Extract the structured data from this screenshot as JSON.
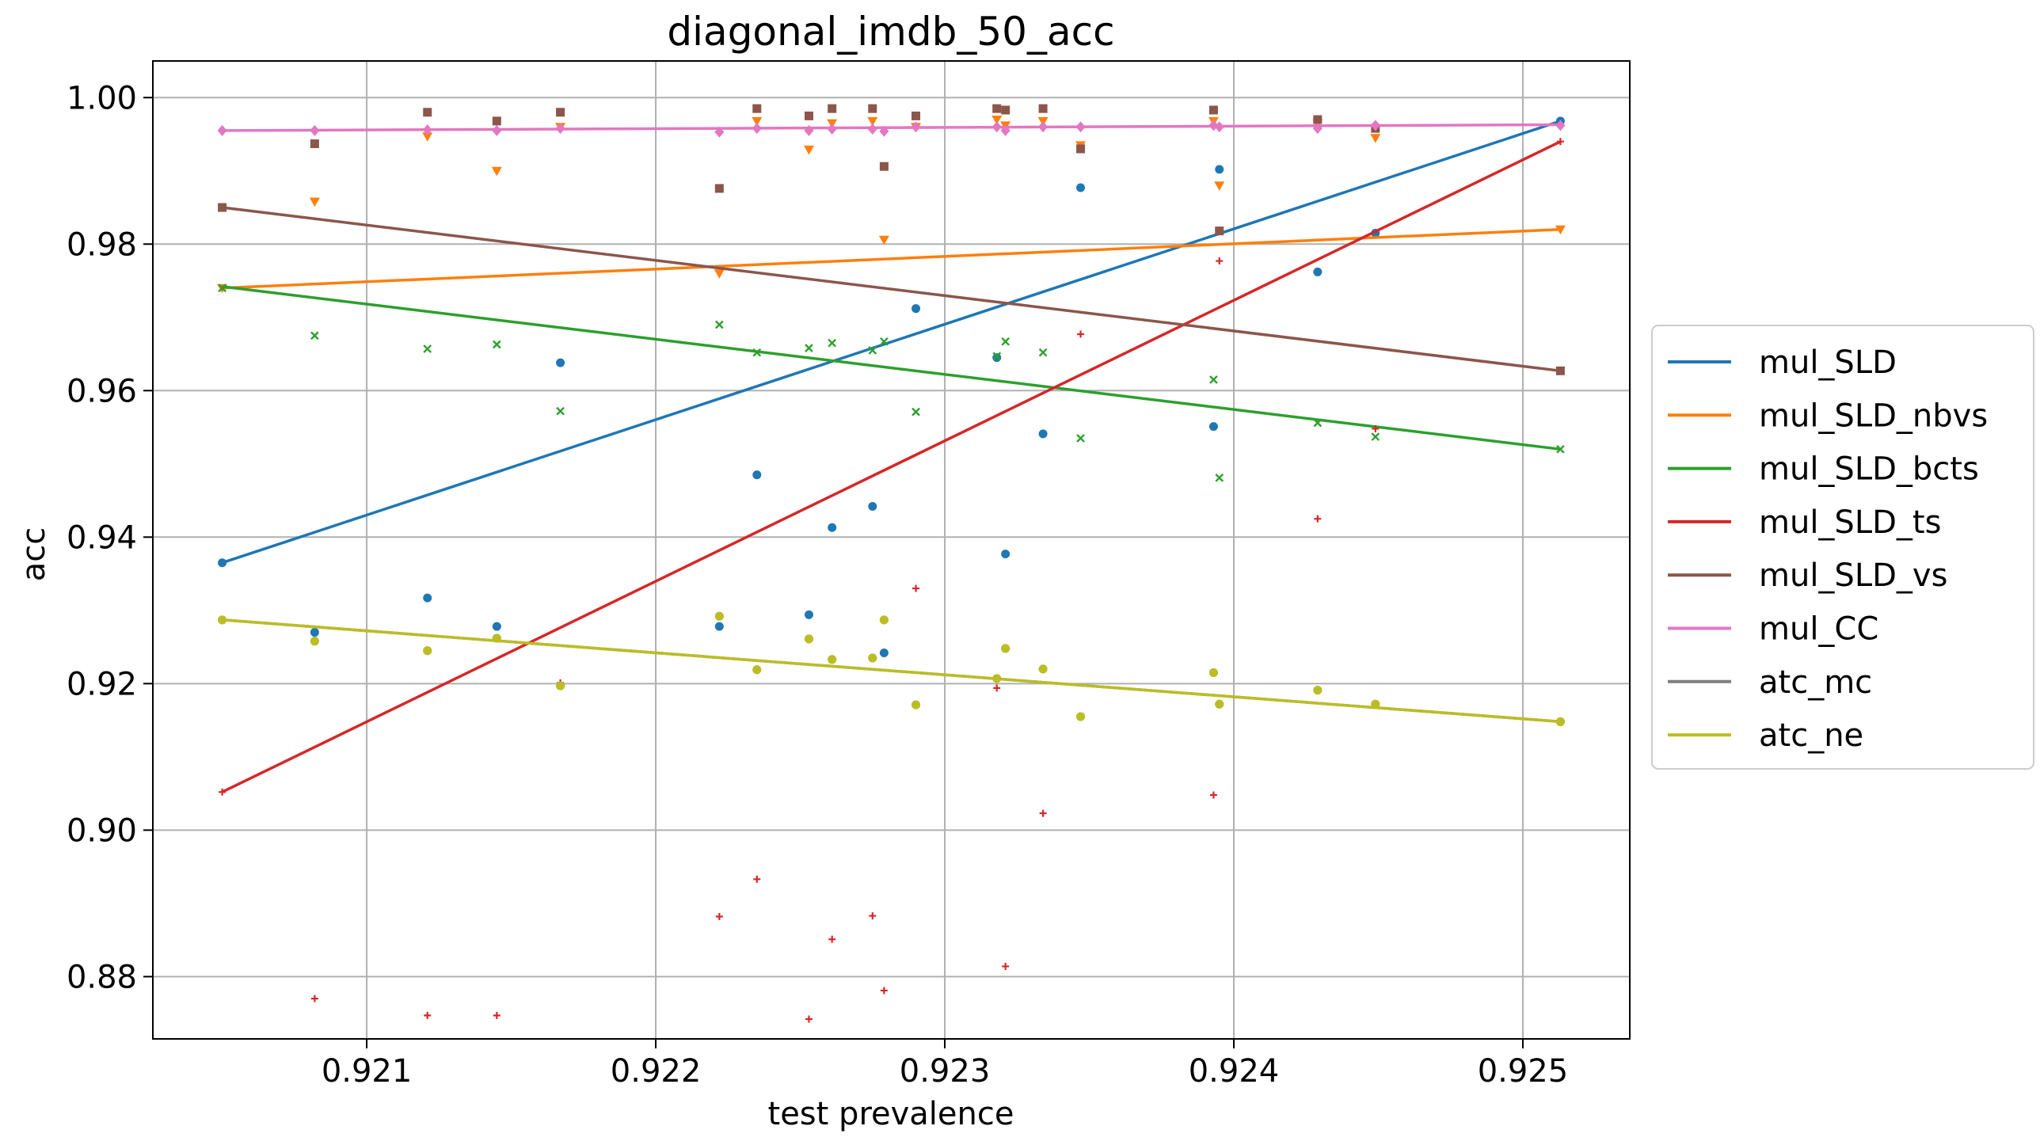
{
  "chart_data": {
    "type": "scatter",
    "title": "diagonal_imdb_50_acc",
    "xlabel": "test prevalence",
    "ylabel": "acc",
    "xlim": [
      0.92026,
      0.92537
    ],
    "ylim": [
      0.8715,
      1.005
    ],
    "grid": true,
    "legend_position": "outside-right",
    "xticks": [
      0.921,
      0.922,
      0.923,
      0.924,
      0.925
    ],
    "xtick_labels": [
      "0.921",
      "0.922",
      "0.923",
      "0.924",
      "0.925"
    ],
    "yticks": [
      0.88,
      0.9,
      0.92,
      0.94,
      0.96,
      0.98,
      1.0
    ],
    "ytick_labels": [
      "0.88",
      "0.90",
      "0.92",
      "0.94",
      "0.96",
      "0.98",
      "1.00"
    ],
    "series": [
      {
        "name": "mul_SLD",
        "color": "#1f77b4",
        "marker": "circle",
        "points": [
          [
            0.9205,
            0.9365
          ],
          [
            0.92082,
            0.927
          ],
          [
            0.92121,
            0.9317
          ],
          [
            0.92145,
            0.9278
          ],
          [
            0.92167,
            0.9638
          ],
          [
            0.92222,
            0.9278
          ],
          [
            0.92235,
            0.9485
          ],
          [
            0.92253,
            0.9294
          ],
          [
            0.92261,
            0.9413
          ],
          [
            0.92275,
            0.9442
          ],
          [
            0.92279,
            0.9242
          ],
          [
            0.9229,
            0.9712
          ],
          [
            0.92318,
            0.9645
          ],
          [
            0.92321,
            0.9377
          ],
          [
            0.92334,
            0.9541
          ],
          [
            0.92347,
            0.9877
          ],
          [
            0.92393,
            0.9551
          ],
          [
            0.92395,
            0.9902
          ],
          [
            0.92429,
            0.9762
          ],
          [
            0.92449,
            0.9815
          ],
          [
            0.92513,
            0.9968
          ]
        ],
        "trend": [
          [
            0.9205,
            0.9365
          ],
          [
            0.92513,
            0.9968
          ]
        ]
      },
      {
        "name": "mul_SLD_nbvs",
        "color": "#ff7f0e",
        "marker": "triangle-down",
        "points": [
          [
            0.9205,
            0.974
          ],
          [
            0.92082,
            0.9858
          ],
          [
            0.92121,
            0.9947
          ],
          [
            0.92145,
            0.99
          ],
          [
            0.92167,
            0.996
          ],
          [
            0.92222,
            0.976
          ],
          [
            0.92235,
            0.9968
          ],
          [
            0.92253,
            0.9929
          ],
          [
            0.92261,
            0.9965
          ],
          [
            0.92275,
            0.9968
          ],
          [
            0.92279,
            0.9806
          ],
          [
            0.9229,
            0.996
          ],
          [
            0.92318,
            0.997
          ],
          [
            0.92321,
            0.9962
          ],
          [
            0.92334,
            0.9968
          ],
          [
            0.92347,
            0.9935
          ],
          [
            0.92393,
            0.9968
          ],
          [
            0.92395,
            0.988
          ],
          [
            0.92429,
            0.9965
          ],
          [
            0.92449,
            0.9945
          ],
          [
            0.92513,
            0.982
          ]
        ],
        "trend": [
          [
            0.9205,
            0.974
          ],
          [
            0.92513,
            0.982
          ]
        ]
      },
      {
        "name": "mul_SLD_bcts",
        "color": "#2ca02c",
        "marker": "x",
        "points": [
          [
            0.9205,
            0.974
          ],
          [
            0.92082,
            0.9675
          ],
          [
            0.92121,
            0.9657
          ],
          [
            0.92145,
            0.9663
          ],
          [
            0.92167,
            0.9572
          ],
          [
            0.92222,
            0.969
          ],
          [
            0.92235,
            0.9652
          ],
          [
            0.92253,
            0.9658
          ],
          [
            0.92261,
            0.9665
          ],
          [
            0.92275,
            0.9655
          ],
          [
            0.92279,
            0.9667
          ],
          [
            0.9229,
            0.9571
          ],
          [
            0.92318,
            0.9647
          ],
          [
            0.92321,
            0.9667
          ],
          [
            0.92334,
            0.9652
          ],
          [
            0.92347,
            0.9535
          ],
          [
            0.92393,
            0.9615
          ],
          [
            0.92395,
            0.9481
          ],
          [
            0.92429,
            0.9556
          ],
          [
            0.92449,
            0.9537
          ],
          [
            0.92513,
            0.952
          ]
        ],
        "trend": [
          [
            0.9205,
            0.9742
          ],
          [
            0.92513,
            0.952
          ]
        ]
      },
      {
        "name": "mul_SLD_ts",
        "color": "#d62728",
        "marker": "plus",
        "points": [
          [
            0.9205,
            0.9052
          ],
          [
            0.92082,
            0.877
          ],
          [
            0.92121,
            0.8747
          ],
          [
            0.92145,
            0.8747
          ],
          [
            0.92167,
            0.9201
          ],
          [
            0.92222,
            0.8882
          ],
          [
            0.92235,
            0.8933
          ],
          [
            0.92253,
            0.8742
          ],
          [
            0.92261,
            0.8851
          ],
          [
            0.92275,
            0.8883
          ],
          [
            0.92279,
            0.8781
          ],
          [
            0.9229,
            0.933
          ],
          [
            0.92318,
            0.9194
          ],
          [
            0.92321,
            0.8814
          ],
          [
            0.92334,
            0.9023
          ],
          [
            0.92347,
            0.9677
          ],
          [
            0.92393,
            0.9048
          ],
          [
            0.92395,
            0.9777
          ],
          [
            0.92429,
            0.9425
          ],
          [
            0.92449,
            0.9548
          ],
          [
            0.92513,
            0.994
          ]
        ],
        "trend": [
          [
            0.9205,
            0.9052
          ],
          [
            0.92513,
            0.994
          ]
        ]
      },
      {
        "name": "mul_SLD_vs",
        "color": "#8c564b",
        "marker": "square",
        "points": [
          [
            0.9205,
            0.985
          ],
          [
            0.92082,
            0.9937
          ],
          [
            0.92121,
            0.998
          ],
          [
            0.92145,
            0.9968
          ],
          [
            0.92167,
            0.998
          ],
          [
            0.92222,
            0.9876
          ],
          [
            0.92235,
            0.9985
          ],
          [
            0.92253,
            0.9975
          ],
          [
            0.92261,
            0.9985
          ],
          [
            0.92275,
            0.9985
          ],
          [
            0.92279,
            0.9906
          ],
          [
            0.9229,
            0.9975
          ],
          [
            0.92318,
            0.9985
          ],
          [
            0.92321,
            0.9983
          ],
          [
            0.92334,
            0.9985
          ],
          [
            0.92347,
            0.993
          ],
          [
            0.92393,
            0.9983
          ],
          [
            0.92395,
            0.9818
          ],
          [
            0.92429,
            0.997
          ],
          [
            0.92449,
            0.9958
          ],
          [
            0.92513,
            0.9627
          ]
        ],
        "trend": [
          [
            0.9205,
            0.985
          ],
          [
            0.92513,
            0.9627
          ]
        ]
      },
      {
        "name": "mul_CC",
        "color": "#e377c2",
        "marker": "diamond",
        "points": [
          [
            0.9205,
            0.9955
          ],
          [
            0.92082,
            0.9955
          ],
          [
            0.92121,
            0.9956
          ],
          [
            0.92145,
            0.9955
          ],
          [
            0.92167,
            0.9958
          ],
          [
            0.92222,
            0.9953
          ],
          [
            0.92235,
            0.9958
          ],
          [
            0.92253,
            0.9955
          ],
          [
            0.92261,
            0.9957
          ],
          [
            0.92275,
            0.9957
          ],
          [
            0.92279,
            0.9954
          ],
          [
            0.9229,
            0.996
          ],
          [
            0.92318,
            0.996
          ],
          [
            0.92321,
            0.9955
          ],
          [
            0.92334,
            0.996
          ],
          [
            0.92347,
            0.996
          ],
          [
            0.92393,
            0.9962
          ],
          [
            0.92395,
            0.996
          ],
          [
            0.92429,
            0.9958
          ],
          [
            0.92449,
            0.9962
          ],
          [
            0.92513,
            0.9962
          ]
        ],
        "trend": [
          [
            0.9205,
            0.9955
          ],
          [
            0.92513,
            0.9963
          ]
        ]
      },
      {
        "name": "atc_mc",
        "color": "#7f7f7f",
        "marker": "circle",
        "points": [
          [
            0.9205,
            0.9287
          ],
          [
            0.92082,
            0.9258
          ],
          [
            0.92121,
            0.9245
          ],
          [
            0.92145,
            0.9262
          ],
          [
            0.92167,
            0.9197
          ],
          [
            0.92222,
            0.9292
          ],
          [
            0.92235,
            0.9219
          ],
          [
            0.92253,
            0.9261
          ],
          [
            0.92261,
            0.9233
          ],
          [
            0.92275,
            0.9235
          ],
          [
            0.92279,
            0.9287
          ],
          [
            0.9229,
            0.9171
          ],
          [
            0.92318,
            0.9207
          ],
          [
            0.92321,
            0.9248
          ],
          [
            0.92334,
            0.922
          ],
          [
            0.92347,
            0.9155
          ],
          [
            0.92393,
            0.9215
          ],
          [
            0.92395,
            0.9172
          ],
          [
            0.92429,
            0.9191
          ],
          [
            0.92449,
            0.9172
          ],
          [
            0.92513,
            0.9148
          ]
        ],
        "trend": [
          [
            0.9205,
            0.9287
          ],
          [
            0.92513,
            0.9148
          ]
        ]
      },
      {
        "name": "atc_ne",
        "color": "#bcbd22",
        "marker": "circle",
        "points": [
          [
            0.9205,
            0.9287
          ],
          [
            0.92082,
            0.9258
          ],
          [
            0.92121,
            0.9245
          ],
          [
            0.92145,
            0.9262
          ],
          [
            0.92167,
            0.9197
          ],
          [
            0.92222,
            0.9292
          ],
          [
            0.92235,
            0.9219
          ],
          [
            0.92253,
            0.9261
          ],
          [
            0.92261,
            0.9233
          ],
          [
            0.92275,
            0.9235
          ],
          [
            0.92279,
            0.9287
          ],
          [
            0.9229,
            0.9171
          ],
          [
            0.92318,
            0.9207
          ],
          [
            0.92321,
            0.9248
          ],
          [
            0.92334,
            0.922
          ],
          [
            0.92347,
            0.9155
          ],
          [
            0.92393,
            0.9215
          ],
          [
            0.92395,
            0.9172
          ],
          [
            0.92429,
            0.9191
          ],
          [
            0.92449,
            0.9172
          ],
          [
            0.92513,
            0.9148
          ]
        ],
        "trend": [
          [
            0.9205,
            0.9287
          ],
          [
            0.92513,
            0.9148
          ]
        ]
      }
    ]
  }
}
